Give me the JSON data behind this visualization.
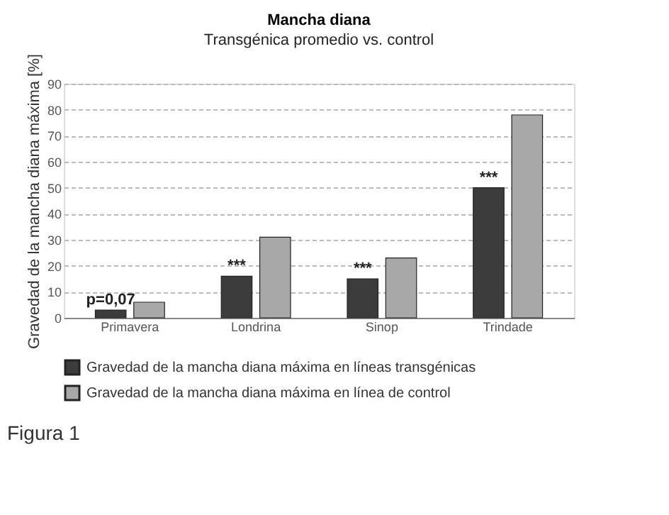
{
  "chart_data": {
    "type": "bar",
    "title": "Mancha diana",
    "subtitle": "Transgénica promedio vs. control",
    "ylabel": "Gravedad de la mancha diana máxima [%]",
    "categories": [
      "Primavera",
      "Londrina",
      "Sinop",
      "Trindade"
    ],
    "series": [
      {
        "name": "Gravedad de la mancha diana máxima en líneas transgénicas",
        "color": "#3c3c3c",
        "values": [
          3,
          16,
          15,
          50
        ]
      },
      {
        "name": "Gravedad de la mancha diana máxima en línea de control",
        "color": "#a8a8a8",
        "values": [
          6,
          31,
          23,
          78
        ]
      }
    ],
    "ylim": [
      0,
      90
    ],
    "yticks": [
      0,
      10,
      20,
      30,
      40,
      50,
      60,
      70,
      80,
      90
    ],
    "grid": "y",
    "legend": "bottom",
    "annotations": [
      {
        "text": "p=0,07",
        "x": "Primavera",
        "y": 3
      },
      {
        "text": "***",
        "x": "Londrina",
        "y": 16
      },
      {
        "text": "***",
        "x": "Sinop",
        "y": 15
      },
      {
        "text": "***",
        "x": "Trindade",
        "y": 50
      },
      "Figura 1"
    ]
  }
}
